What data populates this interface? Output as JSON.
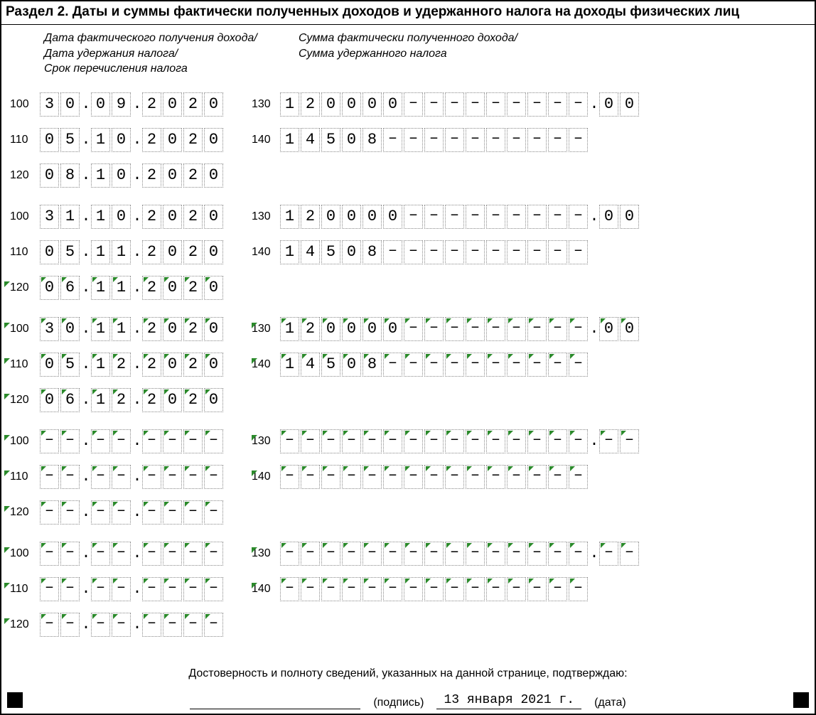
{
  "title": "Раздел 2. Даты и суммы фактически полученных доходов и удержанного налога на доходы физических лиц",
  "header_left_1": "Дата фактического получения дохода/",
  "header_left_2": "Дата удержания налога/",
  "header_left_3": "Срок перечисления налога",
  "header_right_1": "Сумма фактически полученного дохода/",
  "header_right_2": "Сумма удержанного налога",
  "confirm_text": "Достоверность и полноту сведений, указанных на данной странице, подтверждаю:",
  "sig_label": "(подпись)",
  "date_label": "(дата)",
  "sig_date": "13 января 2021 г.",
  "fill_char": "–",
  "blocks": [
    {
      "tri": false,
      "l": [
        {
          "code": "100",
          "d": "30",
          "m": "09",
          "y": "2020"
        },
        {
          "code": "110",
          "d": "05",
          "m": "10",
          "y": "2020"
        },
        {
          "code": "120",
          "d": "08",
          "m": "10",
          "y": "2020"
        }
      ],
      "r": [
        {
          "code": "130",
          "int": "120000",
          "dec": "00"
        },
        {
          "code": "140",
          "int": "14508",
          "dec": null
        }
      ]
    },
    {
      "tri": false,
      "l": [
        {
          "code": "100",
          "d": "31",
          "m": "10",
          "y": "2020"
        },
        {
          "code": "110",
          "d": "05",
          "m": "11",
          "y": "2020"
        },
        {
          "code": "120",
          "d": "06",
          "m": "11",
          "y": "2020",
          "tri": true
        }
      ],
      "r": [
        {
          "code": "130",
          "int": "120000",
          "dec": "00"
        },
        {
          "code": "140",
          "int": "14508",
          "dec": null
        }
      ]
    },
    {
      "tri": true,
      "l": [
        {
          "code": "100",
          "d": "30",
          "m": "11",
          "y": "2020"
        },
        {
          "code": "110",
          "d": "05",
          "m": "12",
          "y": "2020"
        },
        {
          "code": "120",
          "d": "06",
          "m": "12",
          "y": "2020"
        }
      ],
      "r": [
        {
          "code": "130",
          "int": "120000",
          "dec": "00"
        },
        {
          "code": "140",
          "int": "14508",
          "dec": null
        }
      ]
    },
    {
      "tri": true,
      "l": [
        {
          "code": "100",
          "d": "",
          "m": "",
          "y": ""
        },
        {
          "code": "110",
          "d": "",
          "m": "",
          "y": ""
        },
        {
          "code": "120",
          "d": "",
          "m": "",
          "y": ""
        }
      ],
      "r": [
        {
          "code": "130",
          "int": "",
          "dec": ""
        },
        {
          "code": "140",
          "int": "",
          "dec": null
        }
      ]
    },
    {
      "tri": true,
      "l": [
        {
          "code": "100",
          "d": "",
          "m": "",
          "y": ""
        },
        {
          "code": "110",
          "d": "",
          "m": "",
          "y": ""
        },
        {
          "code": "120",
          "d": "",
          "m": "",
          "y": ""
        }
      ],
      "r": [
        {
          "code": "130",
          "int": "",
          "dec": ""
        },
        {
          "code": "140",
          "int": "",
          "dec": null
        }
      ]
    }
  ]
}
